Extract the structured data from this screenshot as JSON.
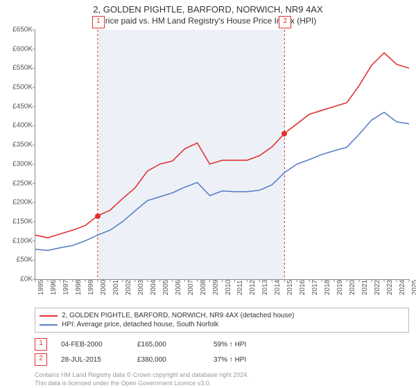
{
  "title_line1": "2, GOLDEN PIGHTLE, BARFORD, NORWICH, NR9 4AX",
  "title_line2": "Price paid vs. HM Land Registry's House Price Index (HPI)",
  "chart": {
    "type": "line",
    "background_color": "#ffffff",
    "shade_color": "#e8edf5",
    "axis_color": "#888888",
    "x_years": [
      1995,
      1996,
      1997,
      1998,
      1999,
      2000,
      2001,
      2002,
      2003,
      2004,
      2005,
      2006,
      2007,
      2008,
      2009,
      2010,
      2011,
      2012,
      2013,
      2014,
      2015,
      2016,
      2017,
      2018,
      2019,
      2020,
      2021,
      2022,
      2023,
      2024,
      2025
    ],
    "y_min": 0,
    "y_max": 650,
    "y_step": 50,
    "y_prefix": "£",
    "y_suffix": "K",
    "x_min": 1995,
    "x_max": 2025,
    "shade_from": 2000,
    "shade_to": 2015,
    "series": [
      {
        "name": "2, GOLDEN PIGHTLE, BARFORD, NORWICH, NR9 4AX (detached house)",
        "color": "#e03030",
        "points_y": [
          115,
          108,
          118,
          128,
          140,
          165,
          180,
          210,
          238,
          282,
          300,
          308,
          340,
          355,
          300,
          310,
          310,
          310,
          322,
          345,
          380,
          405,
          430,
          440,
          450,
          460,
          505,
          558,
          590,
          560,
          550
        ]
      },
      {
        "name": "HPI: Average price, detached house, South Norfolk",
        "color": "#5b7fc7",
        "points_y": [
          78,
          75,
          82,
          88,
          100,
          115,
          128,
          150,
          178,
          205,
          215,
          225,
          240,
          252,
          218,
          230,
          228,
          228,
          232,
          246,
          278,
          300,
          312,
          325,
          335,
          344,
          378,
          415,
          435,
          410,
          405
        ]
      }
    ],
    "markers": [
      {
        "num": "1",
        "year": 2000,
        "y": 165,
        "color": "#e03030"
      },
      {
        "num": "2",
        "year": 2015,
        "y": 380,
        "color": "#e03030"
      }
    ]
  },
  "legend": [
    {
      "color": "#e03030",
      "text": "2, GOLDEN PIGHTLE, BARFORD, NORWICH, NR9 4AX (detached house)"
    },
    {
      "color": "#5b7fc7",
      "text": "HPI: Average price, detached house, South Norfolk"
    }
  ],
  "sales": [
    {
      "num": "1",
      "date": "04-FEB-2000",
      "price": "£165,000",
      "delta": "59% ↑ HPI"
    },
    {
      "num": "2",
      "date": "28-JUL-2015",
      "price": "£380,000",
      "delta": "37% ↑ HPI"
    }
  ],
  "license_l1": "Contains HM Land Registry data © Crown copyright and database right 2024.",
  "license_l2": "This data is licensed under the Open Government Licence v3.0."
}
